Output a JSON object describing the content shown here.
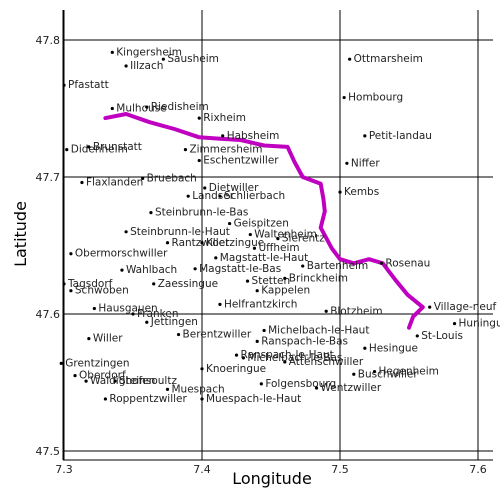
{
  "chart_data": {
    "type": "map",
    "xlabel": "Longitude",
    "ylabel": "Latitude",
    "xlim": [
      7.29,
      7.61
    ],
    "ylim": [
      7.5,
      47.82
    ],
    "xticks": [
      7.3,
      7.4,
      7.5,
      7.6
    ],
    "yticks": [
      47.5,
      47.6,
      47.7,
      47.8
    ],
    "xtick_labels": [
      "7.3",
      "7.4",
      "7.5",
      "7.6"
    ],
    "ytick_labels": [
      "47.5",
      "47.6",
      "47.7",
      "47.8"
    ],
    "grid": true,
    "route": {
      "color": "#c000c0",
      "points": [
        [
          7.33,
          47.743
        ],
        [
          7.345,
          47.746
        ],
        [
          7.362,
          47.74
        ],
        [
          7.38,
          47.735
        ],
        [
          7.398,
          47.729
        ],
        [
          7.412,
          47.728
        ],
        [
          7.428,
          47.727
        ],
        [
          7.445,
          47.723
        ],
        [
          7.462,
          47.722
        ],
        [
          7.467,
          47.711
        ],
        [
          7.473,
          47.7
        ],
        [
          7.486,
          47.695
        ],
        [
          7.488,
          47.684
        ],
        [
          7.489,
          47.675
        ],
        [
          7.486,
          47.663
        ],
        [
          7.494,
          47.648
        ],
        [
          7.5,
          47.64
        ],
        [
          7.51,
          47.637
        ],
        [
          7.521,
          47.64
        ],
        [
          7.531,
          47.637
        ],
        [
          7.54,
          47.625
        ],
        [
          7.549,
          47.614
        ],
        [
          7.56,
          47.605
        ],
        [
          7.553,
          47.598
        ],
        [
          7.55,
          47.59
        ]
      ]
    },
    "places": [
      {
        "name": "Kingersheim",
        "lon": 7.335,
        "lat": 47.791
      },
      {
        "name": "Illzach",
        "lon": 7.345,
        "lat": 47.781
      },
      {
        "name": "Sausheim",
        "lon": 7.372,
        "lat": 47.786
      },
      {
        "name": "Ottmarsheim",
        "lon": 7.507,
        "lat": 47.786
      },
      {
        "name": "Pfastatt",
        "lon": 7.3,
        "lat": 47.767
      },
      {
        "name": "Hombourg",
        "lon": 7.503,
        "lat": 47.758
      },
      {
        "name": "Mulhouse",
        "lon": 7.335,
        "lat": 47.75
      },
      {
        "name": "Riedisheim",
        "lon": 7.36,
        "lat": 47.751
      },
      {
        "name": "Rixheim",
        "lon": 7.398,
        "lat": 47.743
      },
      {
        "name": "Petit-landau",
        "lon": 7.518,
        "lat": 47.73
      },
      {
        "name": "Didenheim",
        "lon": 7.302,
        "lat": 47.72
      },
      {
        "name": "Brunstatt",
        "lon": 7.318,
        "lat": 47.722
      },
      {
        "name": "Habsheim",
        "lon": 7.415,
        "lat": 47.73
      },
      {
        "name": "Zimmersheim",
        "lon": 7.388,
        "lat": 47.72
      },
      {
        "name": "Eschentzwiller",
        "lon": 7.398,
        "lat": 47.712
      },
      {
        "name": "Niffer",
        "lon": 7.505,
        "lat": 47.71
      },
      {
        "name": "Flaxlanden",
        "lon": 7.313,
        "lat": 47.696
      },
      {
        "name": "Bruebach",
        "lon": 7.357,
        "lat": 47.699
      },
      {
        "name": "Dietwiller",
        "lon": 7.402,
        "lat": 47.692
      },
      {
        "name": "Landser",
        "lon": 7.39,
        "lat": 47.686
      },
      {
        "name": "Schlierbach",
        "lon": 7.413,
        "lat": 47.686
      },
      {
        "name": "Kembs",
        "lon": 7.5,
        "lat": 47.689
      },
      {
        "name": "Steinbrunn-le-Bas",
        "lon": 7.363,
        "lat": 47.674
      },
      {
        "name": "Steinbrunn-le-Haut",
        "lon": 7.345,
        "lat": 47.66
      },
      {
        "name": "Geispitzen",
        "lon": 7.42,
        "lat": 47.666
      },
      {
        "name": "Waltenheim",
        "lon": 7.435,
        "lat": 47.658
      },
      {
        "name": "Obermorschwiller",
        "lon": 7.305,
        "lat": 47.644
      },
      {
        "name": "Rantzwiller",
        "lon": 7.375,
        "lat": 47.652
      },
      {
        "name": "Koetzingue",
        "lon": 7.4,
        "lat": 47.652
      },
      {
        "name": "Uffheim",
        "lon": 7.438,
        "lat": 47.648
      },
      {
        "name": "Sierentz",
        "lon": 7.455,
        "lat": 47.655
      },
      {
        "name": "Wahlbach",
        "lon": 7.342,
        "lat": 47.632
      },
      {
        "name": "Zaessingue",
        "lon": 7.365,
        "lat": 47.622
      },
      {
        "name": "Magstatt-le-Bas",
        "lon": 7.395,
        "lat": 47.633
      },
      {
        "name": "Magstatt-le-Haut",
        "lon": 7.41,
        "lat": 47.641
      },
      {
        "name": "Bartenheim",
        "lon": 7.473,
        "lat": 47.635
      },
      {
        "name": "Rosenau",
        "lon": 7.53,
        "lat": 47.637
      },
      {
        "name": "Tagsdorf",
        "lon": 7.3,
        "lat": 47.622
      },
      {
        "name": "Schwoben",
        "lon": 7.305,
        "lat": 47.617
      },
      {
        "name": "Stetten",
        "lon": 7.433,
        "lat": 47.624
      },
      {
        "name": "Kappelen",
        "lon": 7.44,
        "lat": 47.617
      },
      {
        "name": "Brinckheim",
        "lon": 7.46,
        "lat": 47.626
      },
      {
        "name": "Hausgauen",
        "lon": 7.322,
        "lat": 47.604
      },
      {
        "name": "Franken",
        "lon": 7.35,
        "lat": 47.6
      },
      {
        "name": "Helfrantzkirch",
        "lon": 7.413,
        "lat": 47.607
      },
      {
        "name": "Blotzheim",
        "lon": 7.49,
        "lat": 47.602
      },
      {
        "name": "Village-neuf",
        "lon": 7.565,
        "lat": 47.605
      },
      {
        "name": "Huningue",
        "lon": 7.583,
        "lat": 47.593
      },
      {
        "name": "Jettingen",
        "lon": 7.36,
        "lat": 47.594
      },
      {
        "name": "Willer",
        "lon": 7.318,
        "lat": 47.582
      },
      {
        "name": "Berentzwiller",
        "lon": 7.383,
        "lat": 47.585
      },
      {
        "name": "Michelbach-le-Haut",
        "lon": 7.445,
        "lat": 47.588
      },
      {
        "name": "St-Louis",
        "lon": 7.556,
        "lat": 47.584
      },
      {
        "name": "Ranspach-le-Bas",
        "lon": 7.44,
        "lat": 47.58
      },
      {
        "name": "Ranspach-le-Haut",
        "lon": 7.425,
        "lat": 47.57
      },
      {
        "name": "Hesingue",
        "lon": 7.518,
        "lat": 47.575
      },
      {
        "name": "Grentzingen",
        "lon": 7.298,
        "lat": 47.564
      },
      {
        "name": "Oberdorf",
        "lon": 7.308,
        "lat": 47.555
      },
      {
        "name": "Knoeringue",
        "lon": 7.4,
        "lat": 47.56
      },
      {
        "name": "Michelbach-le-Bas",
        "lon": 7.43,
        "lat": 47.568
      },
      {
        "name": "Attenschwiller",
        "lon": 7.46,
        "lat": 47.565
      },
      {
        "name": "Waldighofen",
        "lon": 7.316,
        "lat": 47.551
      },
      {
        "name": "Steinsoultz",
        "lon": 7.337,
        "lat": 47.551
      },
      {
        "name": "Buschwiller",
        "lon": 7.51,
        "lat": 47.556
      },
      {
        "name": "Hegenheim",
        "lon": 7.525,
        "lat": 47.558
      },
      {
        "name": "Folgensbourg",
        "lon": 7.443,
        "lat": 47.549
      },
      {
        "name": "Wentzwiller",
        "lon": 7.483,
        "lat": 47.546
      },
      {
        "name": "Roppentzwiller",
        "lon": 7.33,
        "lat": 47.538
      },
      {
        "name": "Muespach",
        "lon": 7.375,
        "lat": 47.545
      },
      {
        "name": "Muespach-le-Haut",
        "lon": 7.4,
        "lat": 47.538
      }
    ]
  }
}
